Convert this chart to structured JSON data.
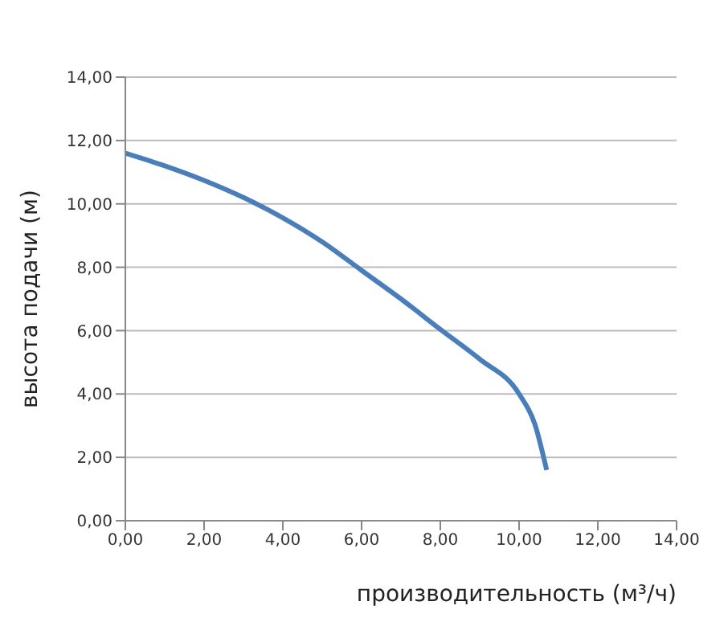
{
  "chart_data": {
    "type": "line",
    "xlabel": "производительность (м³/ч)",
    "ylabel": "высота подачи (м)",
    "x": [
      0,
      1,
      2,
      3,
      4,
      5,
      6,
      7,
      8,
      9,
      10,
      10.4,
      10.7
    ],
    "series": [
      {
        "color": "#4a7ebb",
        "values": [
          11.6,
          11.2,
          10.74,
          10.2,
          9.56,
          8.8,
          7.9,
          7.0,
          6.04,
          5.1,
          4.0,
          3.05,
          1.6
        ]
      }
    ],
    "xlim": [
      0,
      14
    ],
    "ylim": [
      0,
      14
    ],
    "xticks": [
      {
        "value": 0,
        "label": "0,00"
      },
      {
        "value": 2,
        "label": "2,00"
      },
      {
        "value": 4,
        "label": "4,00"
      },
      {
        "value": 6,
        "label": "6,00"
      },
      {
        "value": 8,
        "label": "8,00"
      },
      {
        "value": 10,
        "label": "10,00"
      },
      {
        "value": 12,
        "label": "12,00"
      },
      {
        "value": 14,
        "label": "14,00"
      }
    ],
    "yticks": [
      {
        "value": 0,
        "label": "0,00"
      },
      {
        "value": 2,
        "label": "2,00"
      },
      {
        "value": 4,
        "label": "4,00"
      },
      {
        "value": 6,
        "label": "6,00"
      },
      {
        "value": 8,
        "label": "8,00"
      },
      {
        "value": 10,
        "label": "10,00"
      },
      {
        "value": 12,
        "label": "12,00"
      },
      {
        "value": 14,
        "label": "14,00"
      }
    ],
    "grid": "y",
    "marker": "none",
    "line_style": "solid"
  }
}
